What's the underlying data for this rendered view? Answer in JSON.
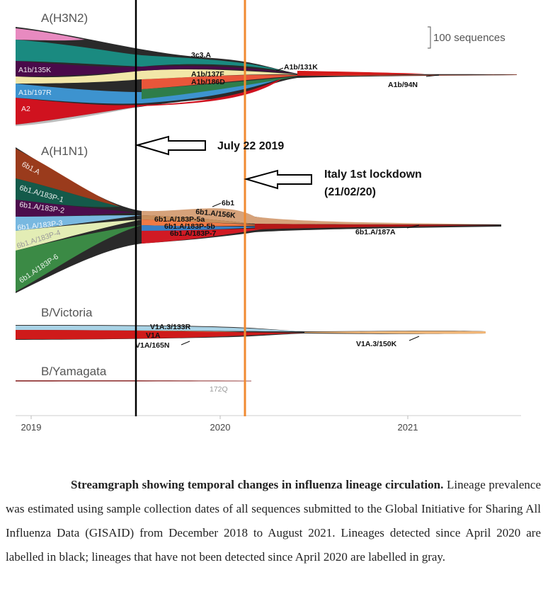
{
  "chart_data": {
    "type": "area",
    "x_ticks": [
      "2019",
      "2020",
      "2021"
    ],
    "scale_label": "100 sequences",
    "panels": [
      {
        "title": "A(H3N2)",
        "series": [
          {
            "name": "A2",
            "color": "#d0121f",
            "labelled": "gray"
          },
          {
            "name": "A1b/197R",
            "color": "#3d93cf",
            "labelled": "gray"
          },
          {
            "name": "A1b/135K",
            "color": "#4a0a4a",
            "labelled": "gray"
          },
          {
            "name": "3c3.A",
            "color": "#1a8a80",
            "labelled": "black"
          },
          {
            "name": "A1b/137F",
            "color": "#f2e7a8",
            "labelled": "black"
          },
          {
            "name": "A1b/186D",
            "color": "#e8563a",
            "labelled": "black"
          },
          {
            "name": "A1b/131K",
            "color": "#2e7d4a",
            "labelled": "black"
          },
          {
            "name": "A1b/94N",
            "color": "#d41a1a",
            "labelled": "black"
          }
        ]
      },
      {
        "title": "A(H1N1)",
        "series": [
          {
            "name": "6b1.A",
            "color": "#9a3b1c",
            "labelled": "gray"
          },
          {
            "name": "6b1.A/183P-1",
            "color": "#145a4a",
            "labelled": "gray"
          },
          {
            "name": "6b1.A/183P-2",
            "color": "#4c0d4c",
            "labelled": "gray"
          },
          {
            "name": "6b1.A/183P-3",
            "color": "#78b8e0",
            "labelled": "gray"
          },
          {
            "name": "6b1.A/183P-4",
            "color": "#e3edb5",
            "labelled": "gray"
          },
          {
            "name": "6b1.A/183P-6",
            "color": "#3b8a45",
            "labelled": "gray"
          },
          {
            "name": "6b1",
            "color": "#d6a27a",
            "labelled": "black"
          },
          {
            "name": "6b1.A/156K",
            "color": "#c98f5c",
            "labelled": "black"
          },
          {
            "name": "6b1.A/183P-5a",
            "color": "#f07a45",
            "labelled": "black"
          },
          {
            "name": "6b1.A/183P-5b",
            "color": "#3a7fc4",
            "labelled": "black"
          },
          {
            "name": "6b1.A/183P-7",
            "color": "#d11a24",
            "labelled": "black"
          },
          {
            "name": "6b1.A/187A",
            "color": "#b51818",
            "labelled": "black"
          }
        ]
      },
      {
        "title": "B/Victoria",
        "series": [
          {
            "name": "V1A.3/133R",
            "color": "#a9d3e6",
            "labelled": "black"
          },
          {
            "name": "V1A",
            "color": "#e8a262",
            "labelled": "black"
          },
          {
            "name": "V1A/165N",
            "color": "#cf1a1a",
            "labelled": "black"
          },
          {
            "name": "V1A.3/150K",
            "color": "#f0b678",
            "labelled": "black"
          }
        ]
      },
      {
        "title": "B/Yamagata",
        "series": [
          {
            "name": "172Q",
            "color": "#a05050",
            "labelled": "gray"
          }
        ]
      }
    ],
    "annotations": [
      {
        "text": "July 22 2019",
        "line_color": "#000000"
      },
      {
        "text_line1": "Italy 1st lockdown",
        "text_line2": "(21/02/20)",
        "line_color": "#f08a30"
      }
    ]
  },
  "caption": {
    "title": "Streamgraph showing temporal changes in influenza lineage circulation.",
    "body": "Lineage prevalence was estimated using sample collection dates of all sequences submitted to the Global Initiative for Sharing All Influenza Data (GISAID) from December 2018 to August 2021. Lineages detected since April 2020 are labelled in black; lineages that have not been detected since April 2020 are labelled in gray."
  }
}
